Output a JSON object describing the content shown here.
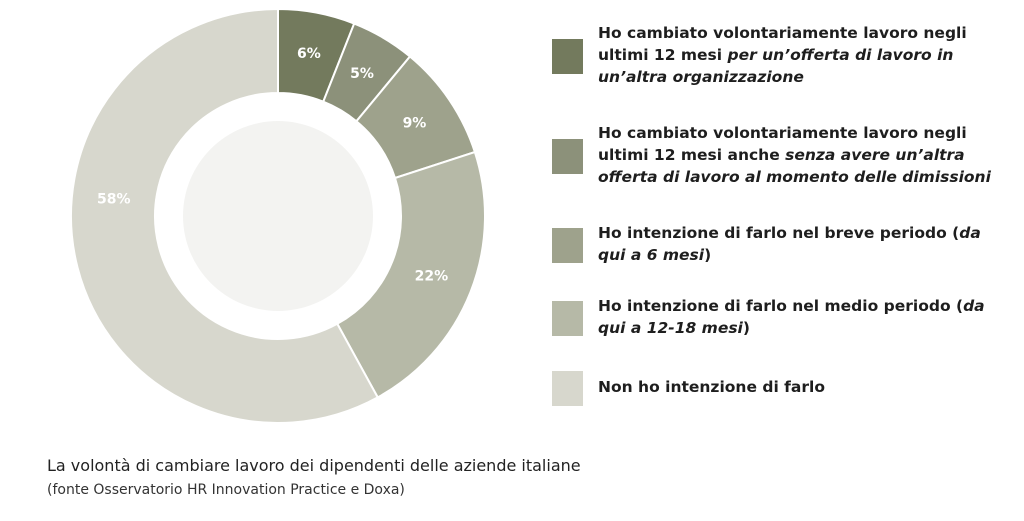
{
  "chart_data": {
    "type": "donut",
    "categories": [
      [
        {
          "text": "Ho cambiato volontariamente lavoro negli ultimi 12 mesi ",
          "italic": false
        },
        {
          "text": "per un’offerta di lavoro in un’altra organizzazione",
          "italic": true
        }
      ],
      [
        {
          "text": "Ho cambiato volontariamente lavoro negli ultimi 12 mesi anche ",
          "italic": false
        },
        {
          "text": "senza avere un’altra offerta di lavoro al momento delle dimissioni",
          "italic": true
        }
      ],
      [
        {
          "text": "Ho intenzione di farlo nel breve periodo ",
          "italic": false
        },
        {
          "text": "(",
          "italic": false
        },
        {
          "text": "da qui a 6 mesi",
          "italic": true
        },
        {
          "text": ")",
          "italic": false
        }
      ],
      [
        {
          "text": "Ho intenzione di farlo nel medio periodo ",
          "italic": false
        },
        {
          "text": "(",
          "italic": false
        },
        {
          "text": "da qui a 12-18 mesi",
          "italic": true
        },
        {
          "text": ")",
          "italic": false
        }
      ],
      [
        {
          "text": "Non ho intenzione di farlo",
          "italic": false
        }
      ]
    ],
    "values": [
      6,
      5,
      9,
      22,
      58
    ],
    "value_labels": [
      "6%",
      "5%",
      "9%",
      "22%",
      "58%"
    ],
    "colors": [
      "#737a5d",
      "#8c917a",
      "#9ea28c",
      "#b6b9a7",
      "#d7d7cd"
    ],
    "caption": "La volontà di cambiare lavoro dei dipendenti delle aziende italiane",
    "source": "(fonte Osservatorio HR Innovation Practice e Doxa)"
  }
}
